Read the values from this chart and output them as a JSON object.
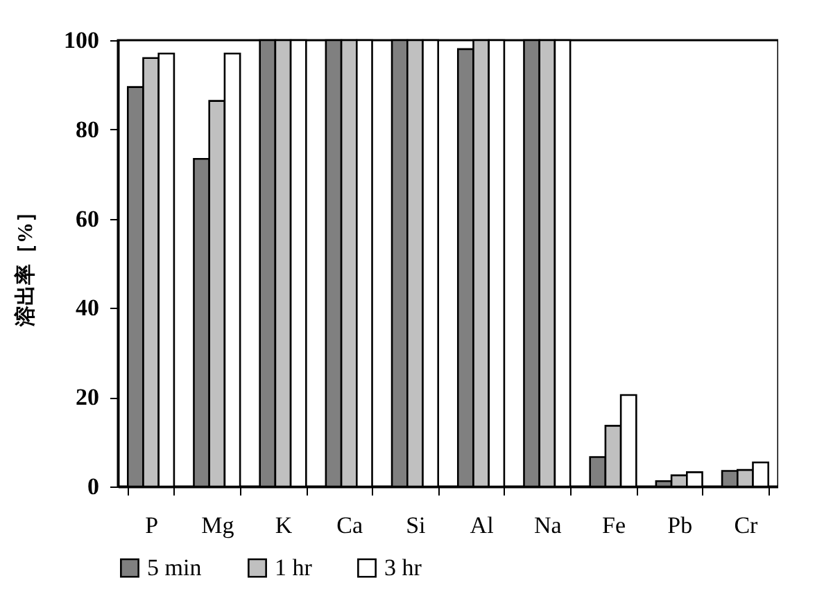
{
  "chart_data": {
    "type": "bar",
    "ylabel": "溶出率［%］",
    "categories": [
      "P",
      "Mg",
      "K",
      "Ca",
      "Si",
      "Al",
      "Na",
      "Fe",
      "Pb",
      "Cr"
    ],
    "series": [
      {
        "name": "5 min",
        "color": "#808080",
        "values": [
          89.5,
          73.4,
          100,
          100,
          100,
          98,
          100,
          6.6,
          1.2,
          3.5
        ]
      },
      {
        "name": "1 hr",
        "color": "#c0c0c0",
        "values": [
          96,
          86.4,
          100,
          100,
          100,
          100,
          100,
          13.6,
          2.5,
          3.7
        ]
      },
      {
        "name": "3 hr",
        "color": "#ffffff",
        "values": [
          97,
          97,
          100,
          100,
          100,
          100,
          100,
          20.5,
          3.2,
          5.4
        ]
      }
    ],
    "ylim": [
      0,
      100
    ],
    "yticks": [
      0,
      20,
      40,
      60,
      80,
      100
    ],
    "grid": false,
    "legend": "bottom"
  }
}
